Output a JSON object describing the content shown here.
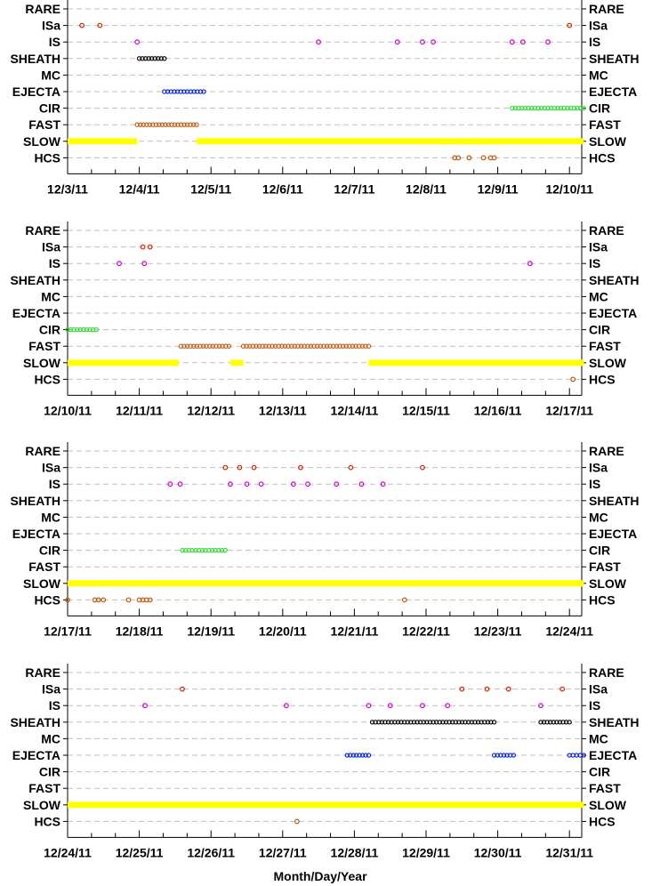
{
  "figure": {
    "xlabel": "Month/Day/Year"
  },
  "chart_data": [
    {
      "type": "scatter",
      "categories": [
        "RARE",
        "ISa",
        "IS",
        "SHEATH",
        "MC",
        "EJECTA",
        "CIR",
        "FAST",
        "SLOW",
        "HCS"
      ],
      "x_ticks": [
        "12/3/11",
        "12/4/11",
        "12/5/11",
        "12/6/11",
        "12/7/11",
        "12/8/11",
        "12/9/11",
        "12/10/11"
      ],
      "xlim": [
        0,
        7.2
      ],
      "xlabel": "",
      "grid": true,
      "series": [
        {
          "category": "ISa",
          "color": "#cc2200",
          "style": "points",
          "x": [
            0.2,
            0.45,
            7.0
          ]
        },
        {
          "category": "IS",
          "color": "#cc00cc",
          "style": "points",
          "x": [
            0.97,
            3.5,
            4.6,
            4.95,
            5.1,
            6.2,
            6.35,
            6.7
          ]
        },
        {
          "category": "SHEATH",
          "color": "#000000",
          "style": "range",
          "ranges": [
            [
              1.0,
              1.35
            ]
          ]
        },
        {
          "category": "EJECTA",
          "color": "#0022cc",
          "style": "range",
          "ranges": [
            [
              1.35,
              1.9
            ]
          ]
        },
        {
          "category": "CIR",
          "color": "#22dd22",
          "style": "range",
          "ranges": [
            [
              6.2,
              7.2
            ]
          ]
        },
        {
          "category": "FAST",
          "color": "#c05a10",
          "style": "range",
          "ranges": [
            [
              0.97,
              1.8
            ]
          ]
        },
        {
          "category": "SLOW",
          "color": "#ffff00",
          "style": "band",
          "ranges": [
            [
              0.0,
              0.97
            ],
            [
              1.8,
              7.2
            ]
          ]
        },
        {
          "category": "HCS",
          "color": "#c05a10",
          "style": "points",
          "x": [
            5.4,
            5.45,
            5.6,
            5.8,
            5.9,
            5.95
          ]
        }
      ]
    },
    {
      "type": "scatter",
      "categories": [
        "RARE",
        "ISa",
        "IS",
        "SHEATH",
        "MC",
        "EJECTA",
        "CIR",
        "FAST",
        "SLOW",
        "HCS"
      ],
      "x_ticks": [
        "12/10/11",
        "12/11/11",
        "12/12/11",
        "12/13/11",
        "12/14/11",
        "12/15/11",
        "12/16/11",
        "12/17/11"
      ],
      "xlim": [
        0,
        7.2
      ],
      "xlabel": "",
      "grid": true,
      "series": [
        {
          "category": "ISa",
          "color": "#cc2200",
          "style": "points",
          "x": [
            1.05,
            1.15
          ]
        },
        {
          "category": "IS",
          "color": "#cc00cc",
          "style": "points",
          "x": [
            0.72,
            1.07,
            6.45
          ]
        },
        {
          "category": "CIR",
          "color": "#22dd22",
          "style": "range",
          "ranges": [
            [
              0.0,
              0.4
            ]
          ]
        },
        {
          "category": "FAST",
          "color": "#c05a10",
          "style": "range",
          "ranges": [
            [
              1.58,
              2.25
            ],
            [
              2.45,
              4.2
            ]
          ]
        },
        {
          "category": "SLOW",
          "color": "#ffff00",
          "style": "band",
          "ranges": [
            [
              0.0,
              1.55
            ],
            [
              2.27,
              2.45
            ],
            [
              4.2,
              7.2
            ]
          ]
        },
        {
          "category": "HCS",
          "color": "#c05a10",
          "style": "points",
          "x": [
            7.05
          ]
        }
      ]
    },
    {
      "type": "scatter",
      "categories": [
        "RARE",
        "ISa",
        "IS",
        "SHEATH",
        "MC",
        "EJECTA",
        "CIR",
        "FAST",
        "SLOW",
        "HCS"
      ],
      "x_ticks": [
        "12/17/11",
        "12/18/11",
        "12/19/11",
        "12/20/11",
        "12/21/11",
        "12/22/11",
        "12/23/11",
        "12/24/11"
      ],
      "xlim": [
        0,
        7.2
      ],
      "xlabel": "",
      "grid": true,
      "series": [
        {
          "category": "ISa",
          "color": "#cc2200",
          "style": "points",
          "x": [
            2.2,
            2.4,
            2.6,
            3.25,
            3.95,
            4.95
          ]
        },
        {
          "category": "IS",
          "color": "#cc00cc",
          "style": "points",
          "x": [
            1.43,
            1.57,
            2.27,
            2.5,
            2.7,
            3.15,
            3.35,
            3.75,
            4.1,
            4.4
          ]
        },
        {
          "category": "CIR",
          "color": "#22dd22",
          "style": "range",
          "ranges": [
            [
              1.6,
              2.2
            ]
          ]
        },
        {
          "category": "SLOW",
          "color": "#ffff00",
          "style": "band",
          "ranges": [
            [
              0.0,
              7.2
            ]
          ]
        },
        {
          "category": "HCS",
          "color": "#c05a10",
          "style": "points",
          "x": [
            0.0,
            0.38,
            0.43,
            0.5,
            0.85,
            1.0,
            1.05,
            1.1,
            1.15,
            4.7
          ]
        }
      ]
    },
    {
      "type": "scatter",
      "categories": [
        "RARE",
        "ISa",
        "IS",
        "SHEATH",
        "MC",
        "EJECTA",
        "CIR",
        "FAST",
        "SLOW",
        "HCS"
      ],
      "x_ticks": [
        "12/24/11",
        "12/25/11",
        "12/26/11",
        "12/27/11",
        "12/28/11",
        "12/29/11",
        "12/30/11",
        "12/31/11"
      ],
      "xlim": [
        0,
        7.2
      ],
      "xlabel": "Month/Day/Year",
      "grid": true,
      "series": [
        {
          "category": "ISa",
          "color": "#cc2200",
          "style": "points",
          "x": [
            1.6,
            5.5,
            5.85,
            6.15,
            6.9
          ]
        },
        {
          "category": "IS",
          "color": "#cc00cc",
          "style": "points",
          "x": [
            1.08,
            3.05,
            4.2,
            4.5,
            4.95,
            5.3,
            6.6
          ]
        },
        {
          "category": "SHEATH",
          "color": "#000000",
          "style": "range",
          "ranges": [
            [
              4.25,
              5.95
            ],
            [
              6.6,
              7.0
            ]
          ]
        },
        {
          "category": "EJECTA",
          "color": "#0022cc",
          "style": "range",
          "ranges": [
            [
              3.9,
              4.2
            ],
            [
              5.95,
              6.22
            ],
            [
              7.0,
              7.2
            ]
          ]
        },
        {
          "category": "SLOW",
          "color": "#ffff00",
          "style": "band",
          "ranges": [
            [
              0.0,
              7.2
            ]
          ]
        },
        {
          "category": "HCS",
          "color": "#c05a10",
          "style": "points",
          "x": [
            3.2
          ]
        }
      ]
    }
  ]
}
